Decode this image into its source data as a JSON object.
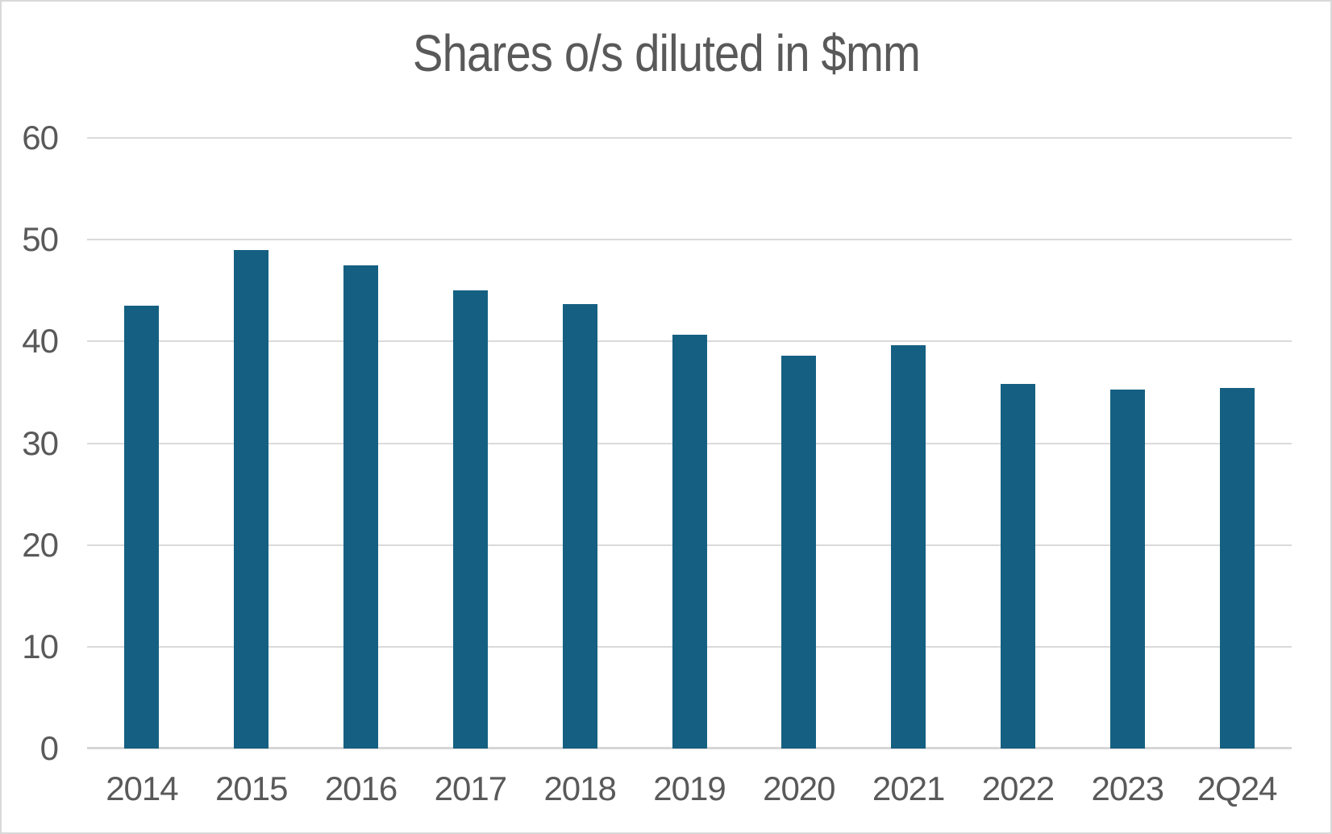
{
  "chart_data": {
    "type": "bar",
    "title": "Shares o/s diluted in $mm",
    "categories": [
      "2014",
      "2015",
      "2016",
      "2017",
      "2018",
      "2019",
      "2020",
      "2021",
      "2022",
      "2023",
      "2Q24"
    ],
    "values": [
      43.5,
      49.0,
      47.5,
      45.0,
      43.7,
      40.7,
      38.6,
      39.6,
      35.8,
      35.3,
      35.4
    ],
    "xlabel": "",
    "ylabel": "",
    "ylim": [
      0,
      60
    ],
    "yticks": [
      0,
      10,
      20,
      30,
      40,
      50,
      60
    ],
    "grid": true,
    "legend": false,
    "bar_color": "#156082",
    "title_color": "#595959",
    "tick_label_color": "#595959",
    "gridline_color": "#dadada",
    "axis_line_color": "#d6d6d6",
    "canvas_border_color": "#d9d9d9",
    "background_color": "#ffffff"
  }
}
